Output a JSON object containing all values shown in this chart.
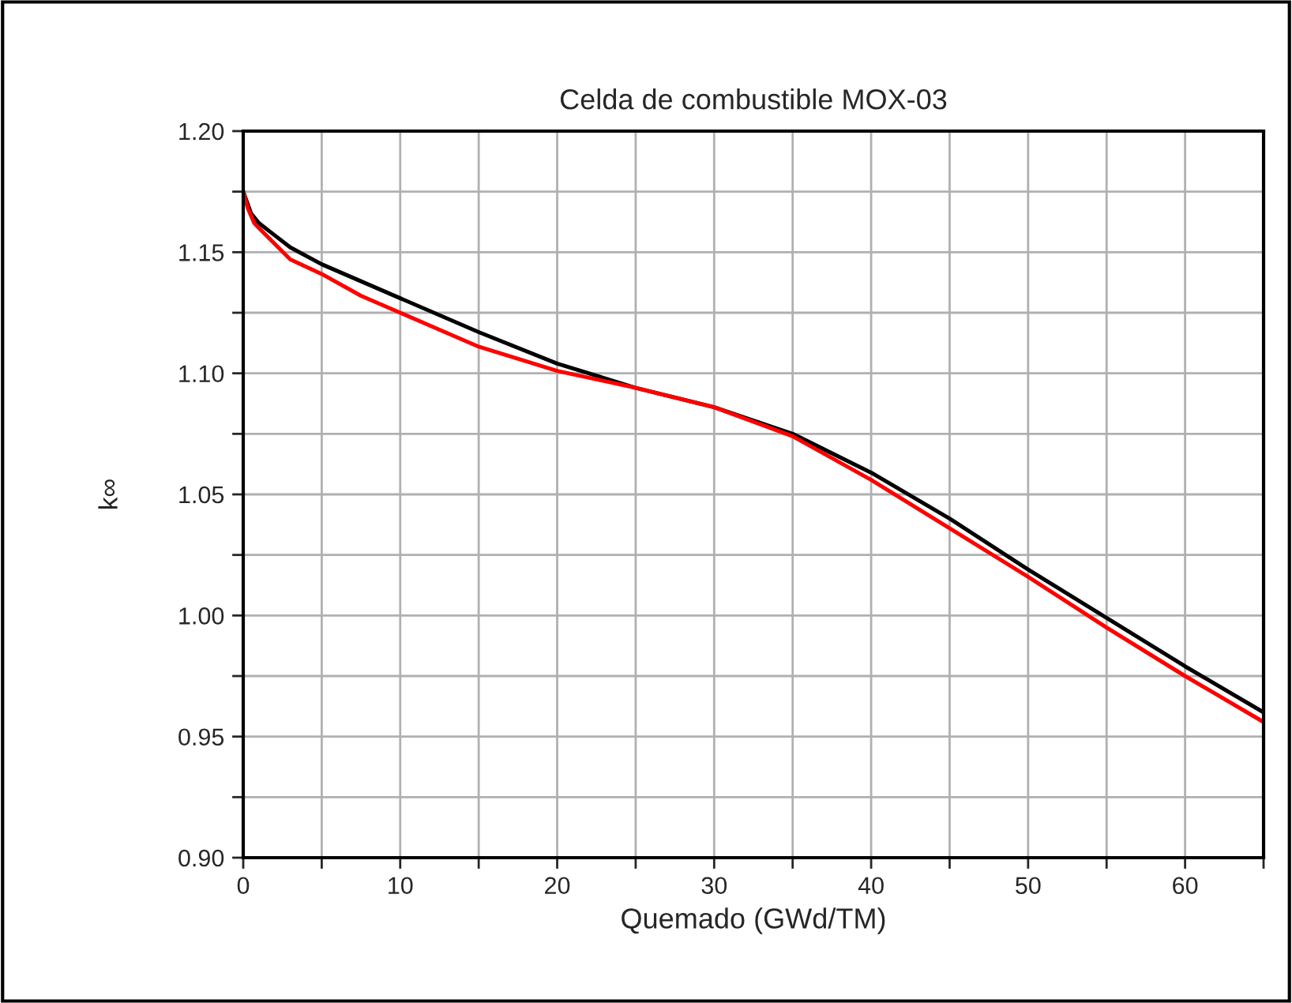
{
  "chart_data": {
    "type": "line",
    "title": "Celda de combustible MOX-03",
    "xlabel": "Quemado (GWd/TM)",
    "ylabel": "k∞",
    "series": [
      {
        "color": "#000000",
        "x": [
          0,
          0.5,
          1,
          2,
          3,
          5,
          7.5,
          10,
          15,
          20,
          25,
          30,
          35,
          40,
          45,
          50,
          55,
          60,
          65
        ],
        "values": [
          1.175,
          1.166,
          1.162,
          1.157,
          1.152,
          1.145,
          1.138,
          1.131,
          1.117,
          1.104,
          1.094,
          1.086,
          1.075,
          1.059,
          1.04,
          1.019,
          0.999,
          0.979,
          0.96
        ]
      },
      {
        "color": "#ff0000",
        "x": [
          0,
          0.3,
          0.7,
          1,
          3,
          5,
          7.5,
          10,
          12.5,
          15,
          20,
          25,
          30,
          35,
          40,
          45,
          50,
          55,
          60,
          65
        ],
        "values": [
          1.175,
          1.168,
          1.162,
          1.16,
          1.147,
          1.141,
          1.132,
          1.125,
          1.118,
          1.111,
          1.101,
          1.094,
          1.086,
          1.074,
          1.056,
          1.036,
          1.016,
          0.995,
          0.975,
          0.956
        ]
      }
    ],
    "xlim": [
      0,
      65
    ],
    "ylim": [
      0.9,
      1.2
    ],
    "xticks": [
      0,
      {
        "value": 5,
        "label": null
      },
      10,
      {
        "value": 15,
        "label": null
      },
      20,
      {
        "value": 25,
        "label": null
      },
      30,
      {
        "value": 35,
        "label": null
      },
      40,
      {
        "value": 45,
        "label": null
      },
      50,
      {
        "value": 55,
        "label": null
      },
      60,
      {
        "value": 65,
        "label": null
      }
    ],
    "yticks": [
      {
        "value": 0.9,
        "label": "0.90"
      },
      {
        "value": 0.925,
        "label": null
      },
      {
        "value": 0.95,
        "label": "0.95"
      },
      {
        "value": 0.975,
        "label": null
      },
      {
        "value": 1.0,
        "label": "1.00"
      },
      {
        "value": 1.025,
        "label": null
      },
      {
        "value": 1.05,
        "label": "1.05"
      },
      {
        "value": 1.075,
        "label": null
      },
      {
        "value": 1.1,
        "label": "1.10"
      },
      {
        "value": 1.125,
        "label": null
      },
      {
        "value": 1.15,
        "label": "1.15"
      },
      {
        "value": 1.175,
        "label": null
      },
      {
        "value": 1.2,
        "label": "1.20"
      }
    ],
    "grid": true,
    "line_style": "solid",
    "marker": "none"
  }
}
